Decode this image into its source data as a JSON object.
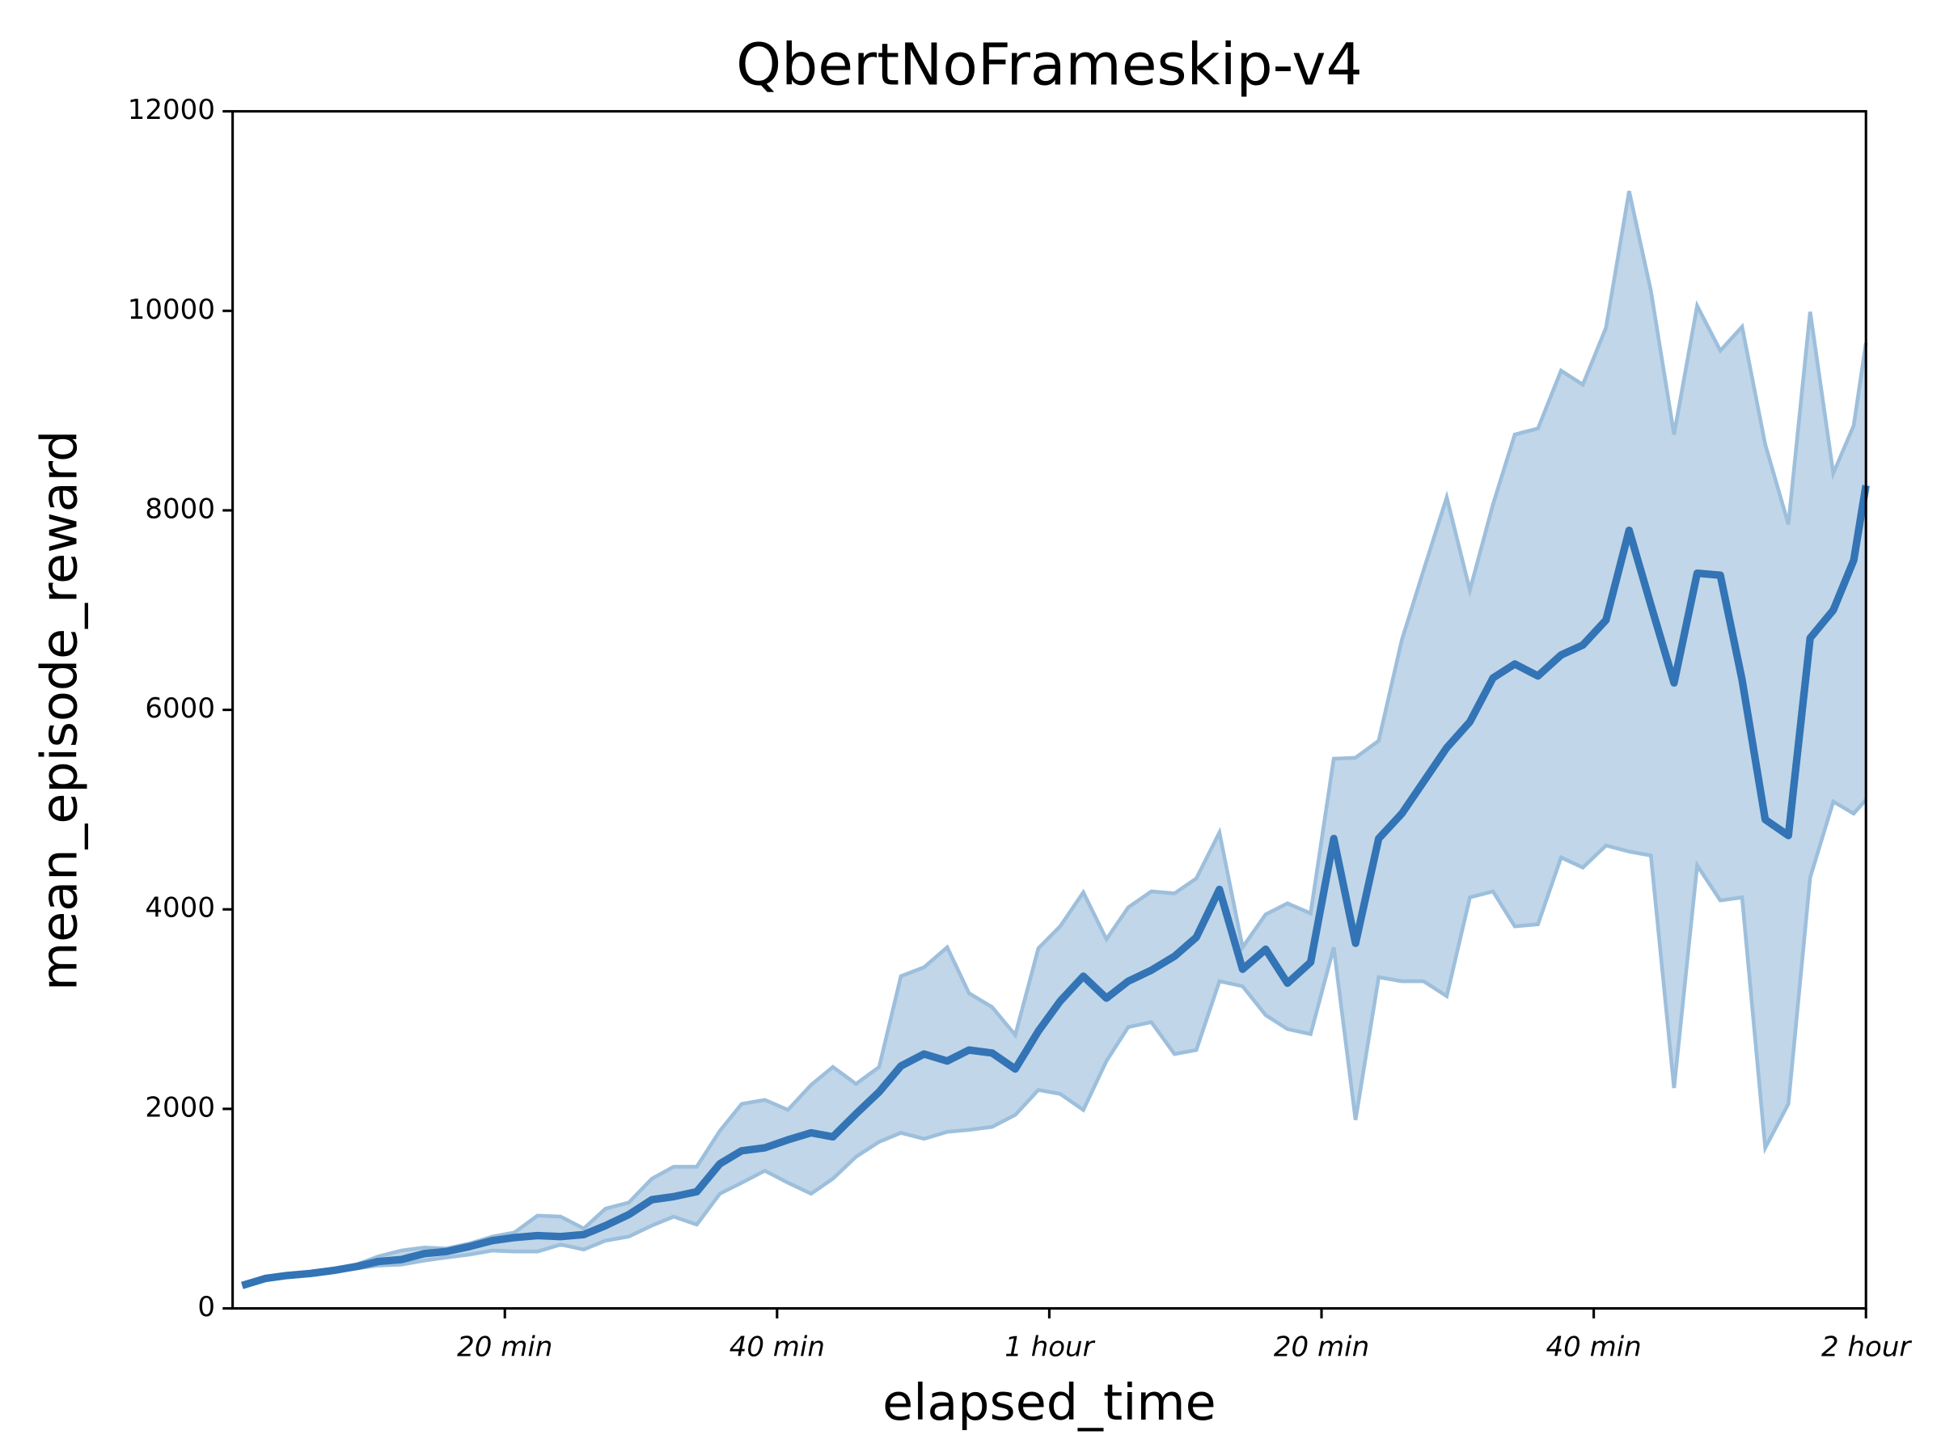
{
  "chart_data": {
    "type": "line",
    "title": "QbertNoFrameskip-v4",
    "x_label": "elapsed_time",
    "y_label": "mean_episode_reward",
    "x": [
      0.7,
      2.4,
      4.0,
      5.7,
      7.4,
      9.1,
      10.7,
      12.4,
      14.1,
      15.7,
      17.4,
      19.1,
      20.7,
      22.4,
      24.1,
      25.8,
      27.4,
      29.1,
      30.8,
      32.4,
      34.1,
      35.8,
      37.4,
      39.1,
      40.8,
      42.5,
      44.1,
      45.8,
      47.5,
      49.1,
      50.8,
      52.5,
      54.1,
      55.8,
      57.5,
      59.2,
      60.8,
      62.5,
      64.2,
      65.8,
      67.5,
      69.2,
      70.8,
      72.5,
      74.2,
      75.9,
      77.5,
      79.2,
      80.9,
      82.5,
      84.2,
      85.9,
      87.5,
      89.2,
      90.9,
      92.6,
      94.2,
      95.9,
      97.6,
      99.2,
      100.9,
      102.6,
      104.2,
      105.9,
      107.6,
      109.3,
      110.9,
      112.6,
      114.3,
      115.9,
      117.6,
      119.1,
      120
    ],
    "values": [
      230,
      300,
      330,
      350,
      380,
      420,
      470,
      490,
      550,
      570,
      620,
      680,
      710,
      730,
      720,
      740,
      830,
      940,
      1090,
      1120,
      1170,
      1450,
      1580,
      1610,
      1690,
      1760,
      1720,
      1950,
      2170,
      2430,
      2550,
      2480,
      2590,
      2560,
      2400,
      2780,
      3080,
      3330,
      3110,
      3280,
      3390,
      3530,
      3720,
      4200,
      3400,
      3600,
      3260,
      3470,
      4710,
      3660,
      4710,
      4960,
      5280,
      5620,
      5880,
      6320,
      6460,
      6340,
      6550,
      6650,
      6900,
      7800,
      7050,
      6270,
      7370,
      7350,
      6300,
      4900,
      4740,
      6720,
      7000,
      7500,
      8250
    ],
    "upper": [
      230,
      310,
      340,
      360,
      390,
      440,
      520,
      580,
      610,
      600,
      650,
      720,
      760,
      930,
      920,
      800,
      1000,
      1060,
      1300,
      1420,
      1420,
      1780,
      2050,
      2090,
      1990,
      2240,
      2420,
      2250,
      2420,
      3330,
      3420,
      3620,
      3160,
      3020,
      2740,
      3610,
      3830,
      4170,
      3700,
      4020,
      4180,
      4160,
      4310,
      4770,
      3620,
      3950,
      4060,
      3960,
      5510,
      5520,
      5690,
      6700,
      7400,
      8130,
      7200,
      8060,
      8760,
      8820,
      9400,
      9260,
      9830,
      11200,
      10200,
      8760,
      10050,
      9600,
      9840,
      8660,
      7860,
      9990,
      8370,
      8850,
      9680
    ],
    "lower": [
      230,
      290,
      320,
      340,
      370,
      400,
      430,
      440,
      480,
      510,
      540,
      580,
      570,
      570,
      640,
      590,
      680,
      720,
      830,
      920,
      840,
      1150,
      1260,
      1380,
      1260,
      1150,
      1300,
      1520,
      1670,
      1760,
      1700,
      1770,
      1790,
      1820,
      1940,
      2190,
      2150,
      1990,
      2480,
      2820,
      2870,
      2550,
      2590,
      3280,
      3230,
      2940,
      2800,
      2750,
      3620,
      1890,
      3320,
      3280,
      3280,
      3130,
      4120,
      4180,
      3830,
      3850,
      4520,
      4420,
      4640,
      4580,
      4540,
      2210,
      4440,
      4090,
      4120,
      1610,
      2050,
      4320,
      5080,
      4960,
      5100
    ],
    "color": "#3274b5",
    "band_color": "#c1d6e8",
    "band_edge_color": "#9dbfdc",
    "xlim": [
      0,
      120
    ],
    "ylim": [
      0,
      12000
    ],
    "xticks": [
      {
        "value": 20,
        "label": "20 min"
      },
      {
        "value": 40,
        "label": "40 min"
      },
      {
        "value": 60,
        "label": "1 hour"
      },
      {
        "value": 80,
        "label": "20 min"
      },
      {
        "value": 100,
        "label": "40 min"
      },
      {
        "value": 120,
        "label": "2 hour"
      }
    ],
    "yticks": [
      0,
      2000,
      4000,
      6000,
      8000,
      10000,
      12000
    ]
  }
}
